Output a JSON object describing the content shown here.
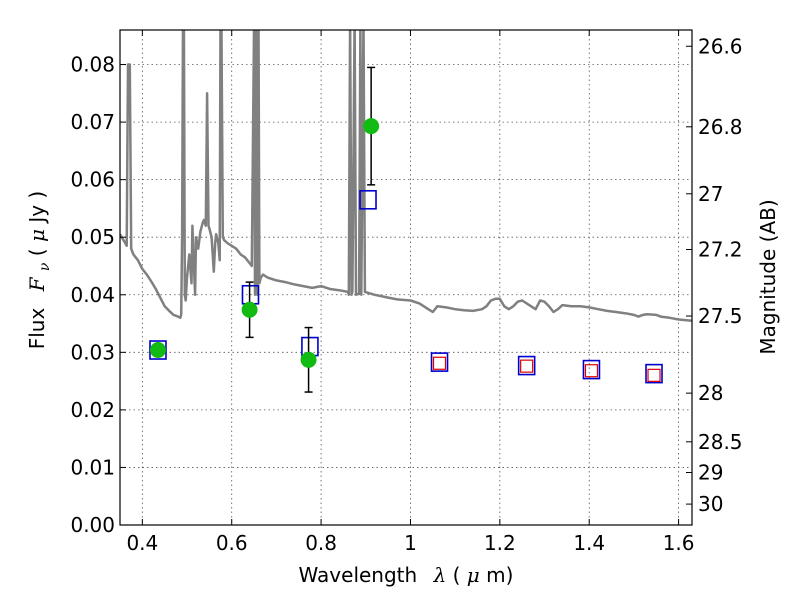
{
  "chart_data": {
    "type": "scatter",
    "title": "",
    "xlabel": "Wavelength",
    "xlabel_symbol": "λ",
    "xlabel_unit_open": " (",
    "xlabel_unit_mu": "μ",
    "xlabel_unit_rest": "m)",
    "ylabel": "Flux",
    "ylabel_symbol": "F",
    "ylabel_subscript": "ν",
    "ylabel_unit_open": " ( ",
    "ylabel_unit_mu": "μ",
    "ylabel_unit_rest": "Jy )",
    "y2label": "Magnitude (AB)",
    "xlim": [
      0.35,
      1.63
    ],
    "ylim": [
      0.0,
      0.086
    ],
    "grid": true,
    "grid_style": "dotted",
    "x_ticks": [
      0.4,
      0.6,
      0.8,
      1.0,
      1.2,
      1.4,
      1.6
    ],
    "x_tick_labels": [
      "0.4",
      "0.6",
      "0.8",
      "1",
      "1.2",
      "1.4",
      "1.6"
    ],
    "y_ticks": [
      0.0,
      0.01,
      0.02,
      0.03,
      0.04,
      0.05,
      0.06,
      0.07,
      0.08
    ],
    "y_tick_labels": [
      "0.00",
      "0.01",
      "0.02",
      "0.03",
      "0.04",
      "0.05",
      "0.06",
      "0.07",
      "0.08"
    ],
    "y2_ticks": [
      {
        "label": "26.6",
        "mag": 26.6
      },
      {
        "label": "26.8",
        "mag": 26.8
      },
      {
        "label": "27",
        "mag": 27.0
      },
      {
        "label": "27.2",
        "mag": 27.2
      },
      {
        "label": "27.5",
        "mag": 27.5
      },
      {
        "label": "28",
        "mag": 28.0
      },
      {
        "label": "28.5",
        "mag": 28.5
      },
      {
        "label": "29",
        "mag": 29.0
      },
      {
        "label": "30",
        "mag": 30.0
      }
    ],
    "colors": {
      "sed_line": "#808080",
      "observed": "#11bb11",
      "model_box": "#0000cc",
      "upper_box": "#dd0000",
      "errorbar": "#000000",
      "grid": "#555555"
    },
    "series": [
      {
        "kind": "line",
        "points": [
          [
            0.35,
            0.0505
          ],
          [
            0.36,
            0.0492
          ],
          [
            0.365,
            0.0485
          ],
          [
            0.368,
            0.08
          ],
          [
            0.372,
            0.08
          ],
          [
            0.375,
            0.048
          ],
          [
            0.38,
            0.047
          ],
          [
            0.39,
            0.046
          ],
          [
            0.4,
            0.0445
          ],
          [
            0.41,
            0.0435
          ],
          [
            0.42,
            0.0423
          ],
          [
            0.43,
            0.041
          ],
          [
            0.44,
            0.0395
          ],
          [
            0.45,
            0.038
          ],
          [
            0.46,
            0.0372
          ],
          [
            0.47,
            0.0365
          ],
          [
            0.48,
            0.0362
          ],
          [
            0.485,
            0.036
          ],
          [
            0.487,
            0.0365
          ],
          [
            0.489,
            0.05
          ],
          [
            0.491,
            0.088
          ],
          [
            0.493,
            0.088
          ],
          [
            0.495,
            0.04
          ],
          [
            0.497,
            0.039
          ],
          [
            0.5,
            0.043
          ],
          [
            0.505,
            0.047
          ],
          [
            0.51,
            0.042
          ],
          [
            0.512,
            0.052
          ],
          [
            0.515,
            0.046
          ],
          [
            0.518,
            0.04
          ],
          [
            0.52,
            0.05
          ],
          [
            0.525,
            0.048
          ],
          [
            0.53,
            0.051
          ],
          [
            0.535,
            0.0525
          ],
          [
            0.538,
            0.053
          ],
          [
            0.542,
            0.052
          ],
          [
            0.545,
            0.075
          ],
          [
            0.548,
            0.052
          ],
          [
            0.55,
            0.0515
          ],
          [
            0.555,
            0.05
          ],
          [
            0.56,
            0.044
          ],
          [
            0.563,
            0.049
          ],
          [
            0.565,
            0.0505
          ],
          [
            0.57,
            0.049
          ],
          [
            0.573,
            0.046
          ],
          [
            0.575,
            0.088
          ],
          [
            0.577,
            0.088
          ],
          [
            0.58,
            0.05
          ],
          [
            0.583,
            0.0495
          ],
          [
            0.59,
            0.049
          ],
          [
            0.6,
            0.0485
          ],
          [
            0.61,
            0.048
          ],
          [
            0.62,
            0.047
          ],
          [
            0.63,
            0.0465
          ],
          [
            0.64,
            0.0455
          ],
          [
            0.645,
            0.045
          ],
          [
            0.65,
            0.088
          ],
          [
            0.652,
            0.04
          ],
          [
            0.655,
            0.088
          ],
          [
            0.657,
            0.04
          ],
          [
            0.66,
            0.088
          ],
          [
            0.662,
            0.042
          ],
          [
            0.665,
            0.043
          ],
          [
            0.67,
            0.0435
          ],
          [
            0.68,
            0.043
          ],
          [
            0.7,
            0.0425
          ],
          [
            0.72,
            0.0422
          ],
          [
            0.74,
            0.0418
          ],
          [
            0.76,
            0.0415
          ],
          [
            0.78,
            0.0412
          ],
          [
            0.8,
            0.0415
          ],
          [
            0.82,
            0.041
          ],
          [
            0.84,
            0.0408
          ],
          [
            0.86,
            0.0405
          ],
          [
            0.862,
            0.04
          ],
          [
            0.865,
            0.088
          ],
          [
            0.868,
            0.04
          ],
          [
            0.87,
            0.0405
          ],
          [
            0.875,
            0.088
          ],
          [
            0.878,
            0.04
          ],
          [
            0.885,
            0.0402
          ],
          [
            0.888,
            0.088
          ],
          [
            0.89,
            0.04
          ],
          [
            0.895,
            0.088
          ],
          [
            0.898,
            0.0405
          ],
          [
            0.92,
            0.04
          ],
          [
            0.95,
            0.0395
          ],
          [
            0.97,
            0.0392
          ],
          [
            1.0,
            0.039
          ],
          [
            1.02,
            0.0385
          ],
          [
            1.04,
            0.0375
          ],
          [
            1.05,
            0.037
          ],
          [
            1.06,
            0.038
          ],
          [
            1.08,
            0.0378
          ],
          [
            1.1,
            0.0375
          ],
          [
            1.12,
            0.0373
          ],
          [
            1.14,
            0.0372
          ],
          [
            1.16,
            0.0375
          ],
          [
            1.17,
            0.038
          ],
          [
            1.18,
            0.039
          ],
          [
            1.19,
            0.0393
          ],
          [
            1.2,
            0.0393
          ],
          [
            1.21,
            0.038
          ],
          [
            1.22,
            0.0375
          ],
          [
            1.23,
            0.038
          ],
          [
            1.24,
            0.0388
          ],
          [
            1.25,
            0.039
          ],
          [
            1.26,
            0.0385
          ],
          [
            1.27,
            0.038
          ],
          [
            1.28,
            0.0375
          ],
          [
            1.29,
            0.039
          ],
          [
            1.3,
            0.0388
          ],
          [
            1.31,
            0.038
          ],
          [
            1.32,
            0.037
          ],
          [
            1.33,
            0.0375
          ],
          [
            1.34,
            0.0382
          ],
          [
            1.36,
            0.038
          ],
          [
            1.38,
            0.038
          ],
          [
            1.4,
            0.0378
          ],
          [
            1.42,
            0.0375
          ],
          [
            1.44,
            0.0372
          ],
          [
            1.46,
            0.037
          ],
          [
            1.48,
            0.0368
          ],
          [
            1.5,
            0.0365
          ],
          [
            1.51,
            0.0362
          ],
          [
            1.52,
            0.0365
          ],
          [
            1.53,
            0.0366
          ],
          [
            1.55,
            0.0365
          ],
          [
            1.56,
            0.0362
          ],
          [
            1.58,
            0.036
          ],
          [
            1.6,
            0.0357
          ],
          [
            1.63,
            0.0355
          ]
        ]
      },
      {
        "kind": "model_boxes",
        "points": [
          {
            "x": 0.435,
            "y": 0.0304
          },
          {
            "x": 0.642,
            "y": 0.04
          },
          {
            "x": 0.775,
            "y": 0.031
          },
          {
            "x": 0.905,
            "y": 0.0565
          },
          {
            "x": 1.065,
            "y": 0.0283
          },
          {
            "x": 1.26,
            "y": 0.0277
          },
          {
            "x": 1.405,
            "y": 0.027
          },
          {
            "x": 1.545,
            "y": 0.0263
          }
        ]
      },
      {
        "kind": "upper_limit_boxes",
        "points": [
          {
            "x": 1.065,
            "y": 0.0281
          },
          {
            "x": 1.26,
            "y": 0.0276
          },
          {
            "x": 1.405,
            "y": 0.0268
          },
          {
            "x": 1.545,
            "y": 0.026
          }
        ]
      },
      {
        "kind": "observed_points",
        "points": [
          {
            "x": 0.435,
            "y": 0.0304,
            "err": null
          },
          {
            "x": 0.64,
            "y": 0.0374,
            "err": 0.0048
          },
          {
            "x": 0.772,
            "y": 0.0287,
            "err": 0.0056
          },
          {
            "x": 0.912,
            "y": 0.0693,
            "err": 0.0102
          }
        ]
      }
    ]
  }
}
